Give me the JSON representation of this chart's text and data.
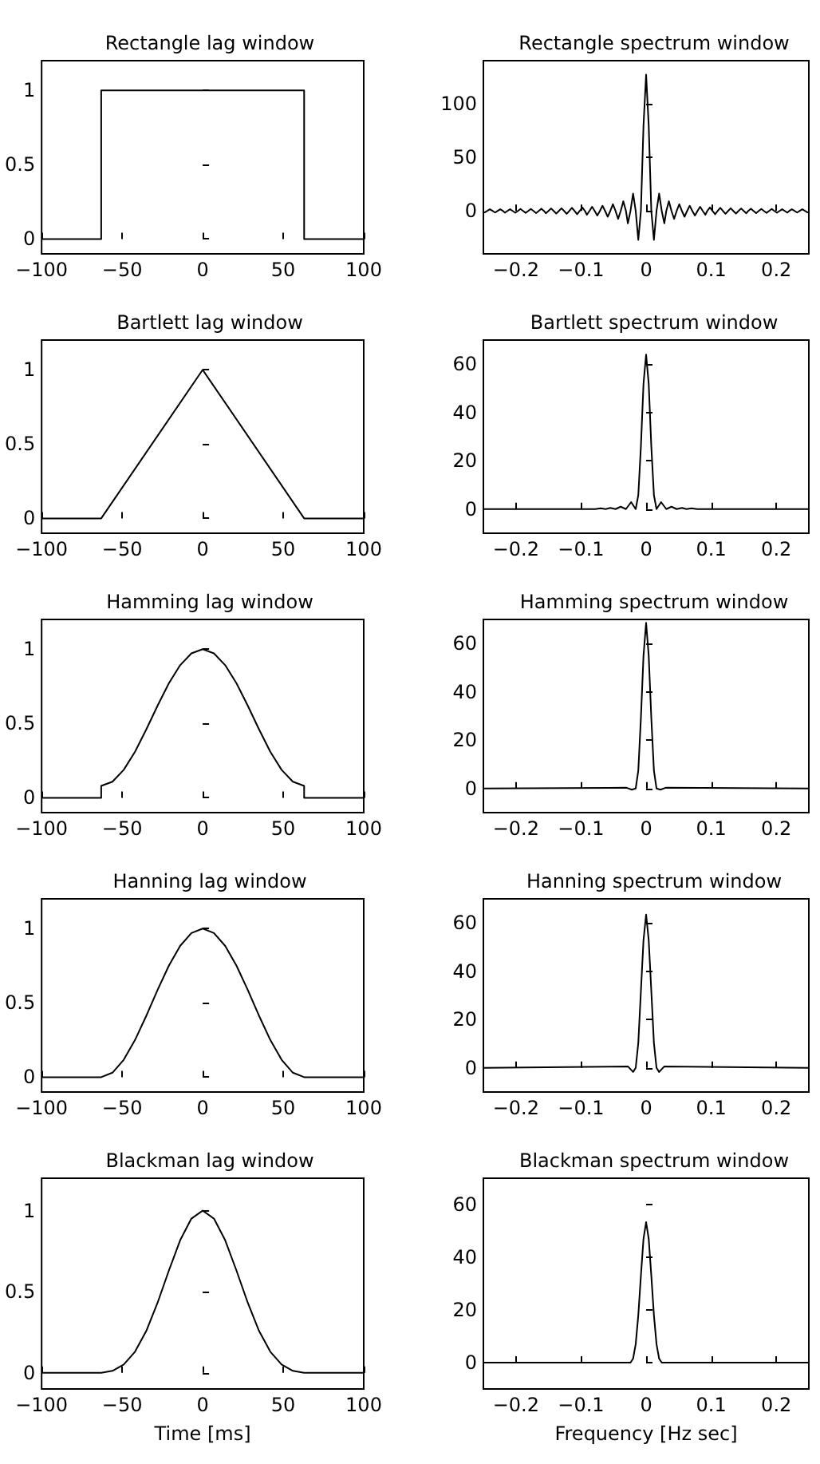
{
  "chart_data": [
    {
      "type": "line",
      "title": "Rectangle lag window",
      "color": "#000000",
      "marker": "none",
      "grid": false,
      "xlim": [
        -100,
        100
      ],
      "ylim": [
        -0.1,
        1.2
      ],
      "xticks": [
        {
          "value": -100,
          "label": "−100"
        },
        {
          "value": -50,
          "label": "−50"
        },
        0,
        50,
        100
      ],
      "yticks": [
        0,
        0.5,
        1
      ],
      "x": [
        -100,
        -63,
        -63,
        63,
        63,
        100
      ],
      "values": [
        0,
        0,
        1,
        1,
        0,
        0
      ]
    },
    {
      "type": "line",
      "title": "Rectangle spectrum window",
      "color": "#000000",
      "marker": "none",
      "grid": false,
      "xlim": [
        -0.25,
        0.25
      ],
      "ylim": [
        -40,
        140
      ],
      "xticks": [
        {
          "value": -0.2,
          "label": "−0.2"
        },
        {
          "value": -0.1,
          "label": "−0.1"
        },
        0,
        0.1,
        0.2
      ],
      "yticks": [
        0,
        50,
        100
      ],
      "x": [
        -0.25,
        -0.248,
        -0.244,
        -0.24,
        -0.236,
        -0.232,
        -0.228,
        -0.224,
        -0.22,
        -0.217,
        -0.213,
        -0.209,
        -0.205,
        -0.201,
        -0.197,
        -0.193,
        -0.189,
        -0.185,
        -0.181,
        -0.177,
        -0.173,
        -0.169,
        -0.165,
        -0.161,
        -0.157,
        -0.154,
        -0.15,
        -0.146,
        -0.142,
        -0.138,
        -0.134,
        -0.13,
        -0.126,
        -0.122,
        -0.118,
        -0.114,
        -0.11,
        -0.106,
        -0.102,
        -0.098,
        -0.094,
        -0.091,
        -0.087,
        -0.083,
        -0.079,
        -0.075,
        -0.071,
        -0.067,
        -0.063,
        -0.059,
        -0.055,
        -0.051,
        -0.047,
        -0.043,
        -0.039,
        -0.035,
        -0.031,
        -0.028,
        -0.024,
        -0.02,
        -0.016,
        -0.012,
        -0.008,
        -0.004,
        0,
        0.004,
        0.008,
        0.012,
        0.016,
        0.02,
        0.024,
        0.028,
        0.031,
        0.035,
        0.039,
        0.043,
        0.047,
        0.051,
        0.055,
        0.059,
        0.063,
        0.067,
        0.071,
        0.075,
        0.079,
        0.083,
        0.087,
        0.091,
        0.094,
        0.098,
        0.102,
        0.106,
        0.11,
        0.114,
        0.118,
        0.122,
        0.126,
        0.13,
        0.134,
        0.138,
        0.142,
        0.146,
        0.15,
        0.154,
        0.157,
        0.161,
        0.165,
        0.169,
        0.173,
        0.177,
        0.181,
        0.185,
        0.189,
        0.193,
        0.197,
        0.201,
        0.205,
        0.209,
        0.213,
        0.217,
        0.22,
        0.224,
        0.228,
        0.232,
        0.236,
        0.24,
        0.244,
        0.248,
        0.25
      ],
      "values": [
        -1,
        -1.4,
        0,
        1.5,
        0,
        -1.5,
        0,
        1.5,
        0,
        -1.6,
        0,
        1.6,
        0,
        -1.7,
        0,
        1.8,
        0,
        -1.8,
        0,
        1.9,
        0,
        -2,
        0,
        2.1,
        0,
        -2.2,
        0,
        2.3,
        0,
        -2.4,
        0,
        2.5,
        0,
        -2.7,
        0,
        2.9,
        0,
        -3.1,
        0,
        3.3,
        0,
        -3.6,
        0,
        3.9,
        0,
        -4.3,
        0,
        4.8,
        0,
        -5.4,
        0,
        6.2,
        0,
        -7.4,
        0,
        9,
        0,
        -11.6,
        0,
        16.2,
        0,
        -27,
        0,
        79.5,
        127,
        79.5,
        0,
        -27,
        0,
        16.2,
        0,
        -11.6,
        0,
        9,
        0,
        -7.4,
        0,
        6.2,
        0,
        -5.4,
        0,
        4.8,
        0,
        -4.3,
        0,
        3.9,
        0,
        -3.6,
        0,
        3.3,
        0,
        -3.1,
        0,
        2.9,
        0,
        -2.7,
        0,
        2.5,
        0,
        -2.4,
        0,
        2.3,
        0,
        -2.2,
        0,
        2.1,
        0,
        -2,
        0,
        1.9,
        0,
        -1.8,
        0,
        1.8,
        0,
        -1.7,
        0,
        1.6,
        0,
        -1.6,
        0,
        1.5,
        0,
        -1.5,
        0,
        1.5,
        0,
        -1.4,
        -1
      ]
    },
    {
      "type": "line",
      "title": "Bartlett lag window",
      "color": "#000000",
      "marker": "none",
      "grid": false,
      "xlim": [
        -100,
        100
      ],
      "ylim": [
        -0.1,
        1.2
      ],
      "xticks": [
        {
          "value": -100,
          "label": "−100"
        },
        {
          "value": -50,
          "label": "−50"
        },
        0,
        50,
        100
      ],
      "yticks": [
        0,
        0.5,
        1
      ],
      "x": [
        -100,
        -63,
        0,
        63,
        100
      ],
      "values": [
        0,
        0,
        1,
        0,
        0
      ]
    },
    {
      "type": "line",
      "title": "Bartlett spectrum window",
      "color": "#000000",
      "marker": "none",
      "grid": false,
      "xlim": [
        -0.25,
        0.25
      ],
      "ylim": [
        -10,
        70
      ],
      "xticks": [
        {
          "value": -0.2,
          "label": "−0.2"
        },
        {
          "value": -0.1,
          "label": "−0.1"
        },
        0,
        0.1,
        0.2
      ],
      "yticks": [
        0,
        20,
        40,
        60
      ],
      "x": [
        -0.25,
        -0.078,
        -0.07,
        -0.062,
        -0.055,
        -0.047,
        -0.039,
        -0.031,
        -0.023,
        -0.016,
        -0.012,
        -0.008,
        -0.004,
        0,
        0.004,
        0.008,
        0.012,
        0.016,
        0.023,
        0.031,
        0.039,
        0.047,
        0.055,
        0.062,
        0.07,
        0.078,
        0.25
      ],
      "values": [
        0,
        0,
        0.3,
        0,
        0.5,
        0,
        1,
        0,
        2.9,
        0,
        5.8,
        25.9,
        51.9,
        64,
        51.9,
        25.9,
        5.8,
        0,
        2.9,
        0,
        1,
        0,
        0.5,
        0,
        0.3,
        0,
        0
      ]
    },
    {
      "type": "line",
      "title": "Hamming lag window",
      "color": "#000000",
      "marker": "none",
      "grid": false,
      "xlim": [
        -100,
        100
      ],
      "ylim": [
        -0.1,
        1.2
      ],
      "xticks": [
        {
          "value": -100,
          "label": "−100"
        },
        {
          "value": -50,
          "label": "−50"
        },
        0,
        50,
        100
      ],
      "yticks": [
        0,
        0.5,
        1
      ],
      "x": [
        -100,
        -63,
        -63,
        -56,
        -49,
        -42,
        -35,
        -28,
        -21,
        -14,
        -7,
        0,
        7,
        14,
        21,
        28,
        35,
        42,
        49,
        56,
        63,
        63,
        100
      ],
      "values": [
        0,
        0,
        0.08,
        0.108,
        0.188,
        0.31,
        0.46,
        0.62,
        0.77,
        0.892,
        0.972,
        1,
        0.972,
        0.892,
        0.77,
        0.62,
        0.46,
        0.31,
        0.188,
        0.108,
        0.08,
        0,
        0
      ]
    },
    {
      "type": "line",
      "title": "Hamming spectrum window",
      "color": "#000000",
      "marker": "none",
      "grid": false,
      "xlim": [
        -0.25,
        0.25
      ],
      "ylim": [
        -10,
        70
      ],
      "xticks": [
        {
          "value": -0.2,
          "label": "−0.2"
        },
        {
          "value": -0.1,
          "label": "−0.1"
        },
        0,
        0.1,
        0.2
      ],
      "yticks": [
        0,
        20,
        40,
        60
      ],
      "x": [
        -0.25,
        -0.03,
        -0.022,
        -0.016,
        -0.012,
        -0.008,
        -0.004,
        0,
        0.004,
        0.008,
        0.012,
        0.016,
        0.022,
        0.03,
        0.25
      ],
      "values": [
        0,
        0.3,
        -0.5,
        0,
        7.4,
        29.2,
        55,
        68.6,
        55,
        29.2,
        7.4,
        0,
        -0.5,
        0.3,
        0
      ]
    },
    {
      "type": "line",
      "title": "Hanning lag window",
      "color": "#000000",
      "marker": "none",
      "grid": false,
      "xlim": [
        -100,
        100
      ],
      "ylim": [
        -0.1,
        1.2
      ],
      "xticks": [
        {
          "value": -100,
          "label": "−100"
        },
        {
          "value": -50,
          "label": "−50"
        },
        0,
        50,
        100
      ],
      "yticks": [
        0,
        0.5,
        1
      ],
      "x": [
        -100,
        -63,
        -56,
        -49,
        -42,
        -35,
        -28,
        -21,
        -14,
        -7,
        0,
        7,
        14,
        21,
        28,
        35,
        42,
        49,
        56,
        63,
        100
      ],
      "values": [
        0,
        0,
        0.03,
        0.117,
        0.25,
        0.413,
        0.587,
        0.75,
        0.883,
        0.97,
        1,
        0.97,
        0.883,
        0.75,
        0.587,
        0.413,
        0.25,
        0.117,
        0.03,
        0,
        0
      ]
    },
    {
      "type": "line",
      "title": "Hanning spectrum window",
      "color": "#000000",
      "marker": "none",
      "grid": false,
      "xlim": [
        -0.25,
        0.25
      ],
      "ylim": [
        -10,
        70
      ],
      "xticks": [
        {
          "value": -0.2,
          "label": "−0.2"
        },
        {
          "value": -0.1,
          "label": "−0.1"
        },
        0,
        0.1,
        0.2
      ],
      "yticks": [
        0,
        20,
        40,
        60
      ],
      "x": [
        -0.25,
        -0.028,
        -0.02,
        -0.016,
        -0.012,
        -0.008,
        -0.004,
        0,
        0.004,
        0.008,
        0.012,
        0.016,
        0.02,
        0.028,
        0.25
      ],
      "values": [
        0,
        0.6,
        -1.7,
        0,
        10.3,
        31.8,
        52.9,
        63.5,
        52.9,
        31.8,
        10.3,
        0,
        -1.7,
        0.6,
        0
      ]
    },
    {
      "type": "line",
      "title": "Blackman lag window",
      "xlabel": "Time [ms]",
      "color": "#000000",
      "marker": "none",
      "grid": false,
      "xlim": [
        -100,
        100
      ],
      "ylim": [
        -0.1,
        1.2
      ],
      "xticks": [
        {
          "value": -100,
          "label": "−100"
        },
        {
          "value": -50,
          "label": "−50"
        },
        0,
        50,
        100
      ],
      "yticks": [
        0,
        0.5,
        1
      ],
      "x": [
        -100,
        -63,
        -56,
        -49,
        -42,
        -35,
        -28,
        -21,
        -14,
        -7,
        0,
        7,
        14,
        21,
        28,
        35,
        42,
        49,
        56,
        63,
        100
      ],
      "values": [
        0,
        0,
        0.012,
        0.051,
        0.13,
        0.258,
        0.432,
        0.63,
        0.817,
        0.951,
        1,
        0.951,
        0.817,
        0.63,
        0.432,
        0.258,
        0.13,
        0.051,
        0.012,
        0,
        0
      ]
    },
    {
      "type": "line",
      "title": "Blackman spectrum window",
      "xlabel": "Frequency [Hz sec]",
      "color": "#000000",
      "marker": "none",
      "grid": false,
      "xlim": [
        -0.25,
        0.25
      ],
      "ylim": [
        -10,
        70
      ],
      "xticks": [
        {
          "value": -0.2,
          "label": "−0.2"
        },
        {
          "value": -0.1,
          "label": "−0.1"
        },
        0,
        0.1,
        0.2
      ],
      "yticks": [
        0,
        20,
        40,
        60
      ],
      "x": [
        -0.25,
        -0.024,
        -0.02,
        -0.016,
        -0.012,
        -0.008,
        -0.004,
        0,
        0.004,
        0.008,
        0.012,
        0.016,
        0.02,
        0.024,
        0.25
      ],
      "values": [
        0,
        0,
        1.5,
        7,
        18,
        33,
        47,
        53.3,
        47,
        33,
        18,
        7,
        1.5,
        0,
        0
      ]
    }
  ]
}
